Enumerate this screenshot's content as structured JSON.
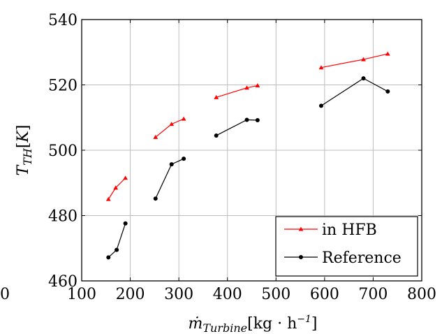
{
  "chart_data": {
    "type": "line",
    "xlabel": "ṁTurbine[kg · h⁻¹]",
    "ylabel": "TTH[K]",
    "xlim": [
      100,
      800
    ],
    "ylim": [
      460,
      540
    ],
    "x_ticks": [
      100,
      200,
      300,
      400,
      500,
      600,
      700,
      800
    ],
    "y_ticks": [
      460,
      480,
      500,
      520,
      540
    ],
    "extra_tick_left": "0",
    "grid": true,
    "legend_position": "bottom-right",
    "series": [
      {
        "name": "in HFB",
        "color": "#ff0000",
        "marker": "triangle",
        "segments": [
          [
            [
              155,
              485
            ],
            [
              170,
              488.5
            ],
            [
              190,
              491.5
            ]
          ],
          [
            [
              252,
              504
            ],
            [
              285,
              508
            ],
            [
              310,
              509.6
            ]
          ],
          [
            [
              377,
              516.2
            ],
            [
              440,
              519.1
            ],
            [
              462,
              519.8
            ]
          ],
          [
            [
              593,
              525.3
            ],
            [
              680,
              527.8
            ],
            [
              730,
              529.5
            ]
          ]
        ]
      },
      {
        "name": "Reference",
        "color": "#000000",
        "marker": "circle",
        "segments": [
          [
            [
              155,
              467.2
            ],
            [
              172,
              469.5
            ],
            [
              190,
              477.6
            ]
          ],
          [
            [
              252,
              485.2
            ],
            [
              285,
              495.7
            ],
            [
              310,
              497.4
            ]
          ],
          [
            [
              377,
              504.5
            ],
            [
              440,
              509.3
            ],
            [
              462,
              509.2
            ]
          ],
          [
            [
              593,
              513.6
            ],
            [
              680,
              522
            ],
            [
              730,
              518
            ]
          ]
        ]
      }
    ]
  }
}
